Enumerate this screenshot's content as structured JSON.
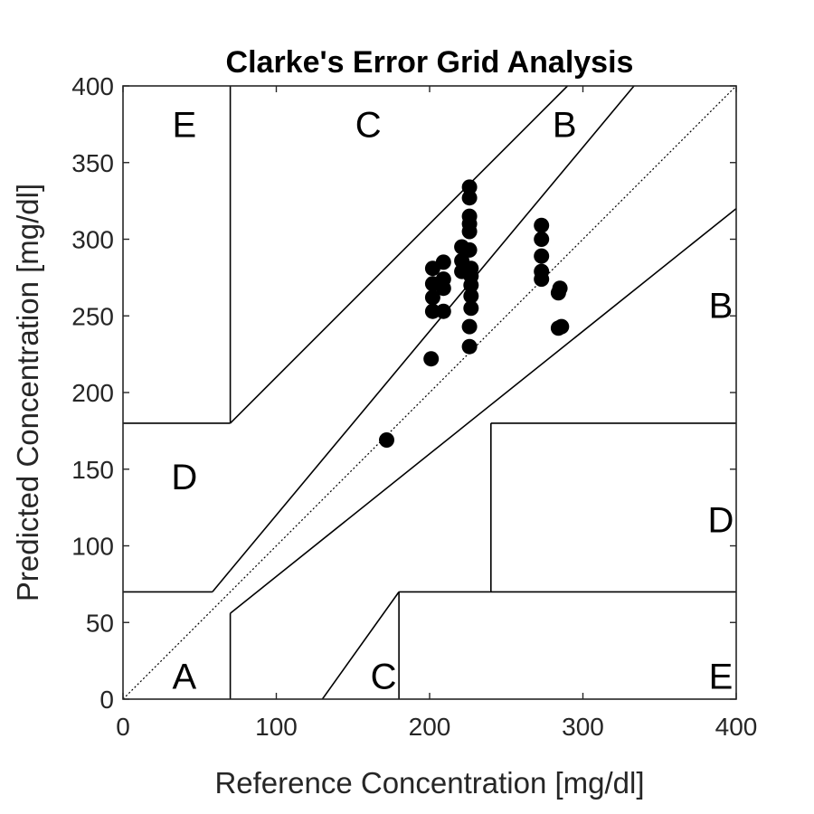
{
  "chart_data": {
    "type": "scatter",
    "title": "Clarke's Error Grid Analysis",
    "xlabel": "Reference Concentration [mg/dl]",
    "ylabel": "Predicted Concentration [mg/dl]",
    "xlim": [
      0,
      400
    ],
    "ylim": [
      0,
      400
    ],
    "xticks": [
      0,
      100,
      200,
      300,
      400
    ],
    "yticks": [
      0,
      50,
      100,
      150,
      200,
      250,
      300,
      350,
      400
    ],
    "grid": false,
    "point_color": "#000000",
    "identity_line": {
      "from": [
        0,
        0
      ],
      "to": [
        400,
        400
      ],
      "style": "dotted"
    },
    "zone_lines": [
      {
        "points": [
          [
            70,
            180
          ],
          [
            70,
            400
          ]
        ]
      },
      {
        "points": [
          [
            0,
            180
          ],
          [
            70,
            180
          ]
        ]
      },
      {
        "points": [
          [
            70,
            180
          ],
          [
            290,
            400
          ]
        ]
      },
      {
        "points": [
          [
            0,
            70
          ],
          [
            58.33,
            70
          ]
        ]
      },
      {
        "points": [
          [
            58.33,
            70
          ],
          [
            70,
            84
          ]
        ]
      },
      {
        "points": [
          [
            70,
            84
          ],
          [
            333.33,
            400
          ]
        ]
      },
      {
        "points": [
          [
            70,
            56
          ],
          [
            400,
            320
          ]
        ]
      },
      {
        "points": [
          [
            70,
            0
          ],
          [
            70,
            56
          ]
        ]
      },
      {
        "points": [
          [
            130,
            0
          ],
          [
            180,
            70
          ]
        ]
      },
      {
        "points": [
          [
            180,
            0
          ],
          [
            180,
            70
          ]
        ]
      },
      {
        "points": [
          [
            180,
            70
          ],
          [
            400,
            70
          ]
        ]
      },
      {
        "points": [
          [
            240,
            70
          ],
          [
            240,
            180
          ]
        ]
      },
      {
        "points": [
          [
            240,
            180
          ],
          [
            400,
            180
          ]
        ]
      }
    ],
    "zone_labels": [
      {
        "text": "E",
        "x": 40,
        "y": 375
      },
      {
        "text": "C",
        "x": 160,
        "y": 375
      },
      {
        "text": "B",
        "x": 288,
        "y": 375
      },
      {
        "text": "B",
        "x": 390,
        "y": 257
      },
      {
        "text": "D",
        "x": 40,
        "y": 145
      },
      {
        "text": "D",
        "x": 390,
        "y": 117
      },
      {
        "text": "A",
        "x": 40,
        "y": 15
      },
      {
        "text": "C",
        "x": 170,
        "y": 15
      },
      {
        "text": "E",
        "x": 390,
        "y": 15
      }
    ],
    "points": [
      {
        "x": 172,
        "y": 169
      },
      {
        "x": 201,
        "y": 222
      },
      {
        "x": 202,
        "y": 253
      },
      {
        "x": 202,
        "y": 262
      },
      {
        "x": 202,
        "y": 271
      },
      {
        "x": 202,
        "y": 281
      },
      {
        "x": 209,
        "y": 253
      },
      {
        "x": 209,
        "y": 268
      },
      {
        "x": 209,
        "y": 274
      },
      {
        "x": 209,
        "y": 285
      },
      {
        "x": 221,
        "y": 279
      },
      {
        "x": 221,
        "y": 286
      },
      {
        "x": 221,
        "y": 295
      },
      {
        "x": 226,
        "y": 230
      },
      {
        "x": 226,
        "y": 243
      },
      {
        "x": 227,
        "y": 255
      },
      {
        "x": 227,
        "y": 263
      },
      {
        "x": 227,
        "y": 270
      },
      {
        "x": 227,
        "y": 276
      },
      {
        "x": 227,
        "y": 281
      },
      {
        "x": 226,
        "y": 293
      },
      {
        "x": 226,
        "y": 305
      },
      {
        "x": 226,
        "y": 310
      },
      {
        "x": 226,
        "y": 315
      },
      {
        "x": 226,
        "y": 327
      },
      {
        "x": 226,
        "y": 334
      },
      {
        "x": 273,
        "y": 274
      },
      {
        "x": 273,
        "y": 279
      },
      {
        "x": 273,
        "y": 289
      },
      {
        "x": 273,
        "y": 300
      },
      {
        "x": 273,
        "y": 309
      },
      {
        "x": 284,
        "y": 265
      },
      {
        "x": 285,
        "y": 268
      },
      {
        "x": 284,
        "y": 242
      },
      {
        "x": 286,
        "y": 243
      }
    ]
  }
}
